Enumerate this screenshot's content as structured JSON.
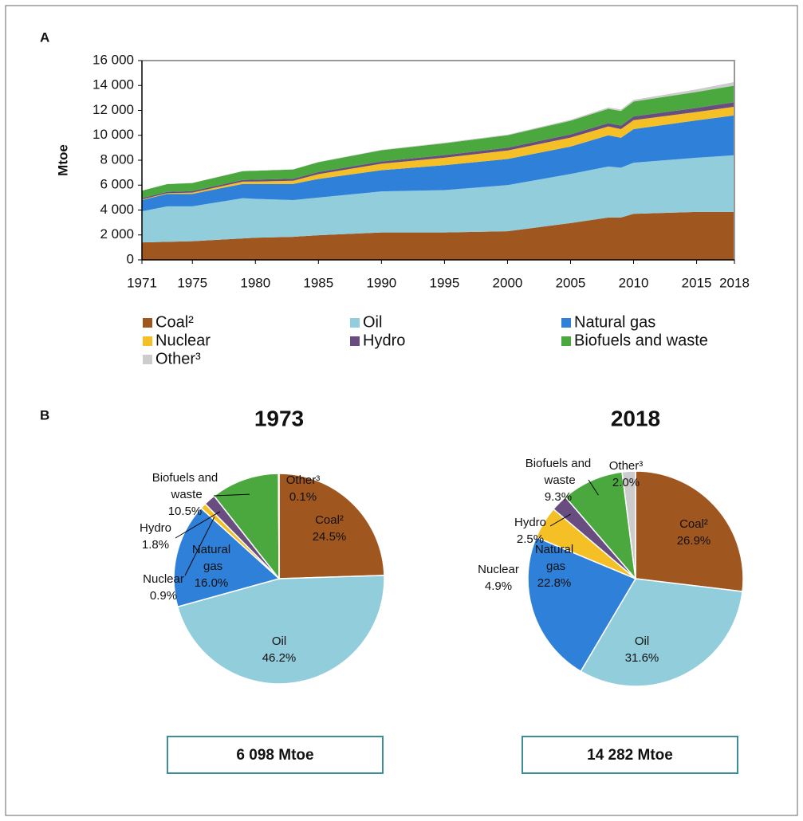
{
  "chart_data": [
    {
      "type": "area",
      "stacked": true,
      "panel": "A",
      "ylabel": "Mtoe",
      "x": [
        1971,
        1973,
        1975,
        1979,
        1980,
        1983,
        1985,
        1990,
        1995,
        2000,
        2005,
        2008,
        2009,
        2010,
        2015,
        2018
      ],
      "xlim": [
        1971,
        2018
      ],
      "xticks": [
        1971,
        1975,
        1980,
        1985,
        1990,
        1995,
        2000,
        2005,
        2010,
        2015,
        2018
      ],
      "ylim": [
        0,
        16000
      ],
      "yticks": [
        0,
        {
          "value": 2000,
          "label": "2 000"
        },
        {
          "value": 4000,
          "label": "4 000"
        },
        {
          "value": 6000,
          "label": "6 000"
        },
        {
          "value": 8000,
          "label": "8 000"
        },
        {
          "value": 10000,
          "label": "10 000"
        },
        {
          "value": 12000,
          "label": "12 000"
        },
        {
          "value": 14000,
          "label": "14 000"
        },
        {
          "value": 16000,
          "label": "16 000"
        }
      ],
      "series": [
        {
          "name": "Coal²",
          "color": "#a0561f",
          "values": [
            1400,
            1450,
            1500,
            1720,
            1780,
            1850,
            1980,
            2200,
            2200,
            2300,
            2950,
            3400,
            3400,
            3700,
            3850,
            3850
          ]
        },
        {
          "name": "Oil",
          "color": "#92cddc",
          "values": [
            2500,
            2850,
            2800,
            3230,
            3120,
            2950,
            3020,
            3300,
            3400,
            3700,
            3950,
            4100,
            4000,
            4100,
            4350,
            4550
          ]
        },
        {
          "name": "Natural gas",
          "color": "#2f80d8",
          "values": [
            900,
            1000,
            1000,
            1150,
            1200,
            1300,
            1500,
            1700,
            2000,
            2100,
            2200,
            2500,
            2400,
            2700,
            3000,
            3200
          ]
        },
        {
          "name": "Nuclear",
          "color": "#f5c026",
          "values": [
            50,
            50,
            100,
            180,
            190,
            250,
            380,
            520,
            600,
            680,
            720,
            710,
            700,
            720,
            670,
            700
          ]
        },
        {
          "name": "Hydro",
          "color": "#6a4d80",
          "values": [
            100,
            110,
            120,
            140,
            150,
            160,
            170,
            180,
            210,
            220,
            250,
            270,
            280,
            290,
            330,
            360
          ]
        },
        {
          "name": "Biofuels and waste",
          "color": "#4aa83f",
          "values": [
            600,
            620,
            650,
            700,
            710,
            750,
            790,
            900,
            950,
            1000,
            1100,
            1150,
            1170,
            1200,
            1280,
            1330
          ]
        },
        {
          "name": "Other³",
          "color": "#cccccc",
          "values": [
            5,
            6,
            10,
            14,
            15,
            20,
            25,
            40,
            50,
            60,
            80,
            110,
            120,
            140,
            210,
            290
          ]
        }
      ]
    },
    {
      "type": "pie",
      "panel": "B",
      "title": "1973",
      "total": "6 098 Mtoe",
      "categories": [
        "Coal²",
        "Oil",
        "Natural gas",
        "Nuclear",
        "Hydro",
        "Biofuels and waste",
        "Other³"
      ],
      "values": [
        24.5,
        46.2,
        16.0,
        0.9,
        1.8,
        10.5,
        0.1
      ],
      "value_labels": [
        "24.5%",
        "46.2%",
        "16.0%",
        "0.9%",
        "1.8%",
        "10.5%",
        "0.1%"
      ],
      "colors": [
        "#a0561f",
        "#92cddc",
        "#2f80d8",
        "#f5c026",
        "#6a4d80",
        "#4aa83f",
        "#cccccc"
      ]
    },
    {
      "type": "pie",
      "title": "2018",
      "total": "14 282 Mtoe",
      "categories": [
        "Coal²",
        "Oil",
        "Natural gas",
        "Nuclear",
        "Hydro",
        "Biofuels and waste",
        "Other³"
      ],
      "values": [
        26.9,
        31.6,
        22.8,
        4.9,
        2.5,
        9.3,
        2.0
      ],
      "value_labels": [
        "26.9%",
        "31.6%",
        "22.8%",
        "4.9%",
        "2.5%",
        "9.3%",
        "2.0%"
      ],
      "colors": [
        "#a0561f",
        "#92cddc",
        "#2f80d8",
        "#f5c026",
        "#6a4d80",
        "#4aa83f",
        "#cccccc"
      ]
    }
  ]
}
